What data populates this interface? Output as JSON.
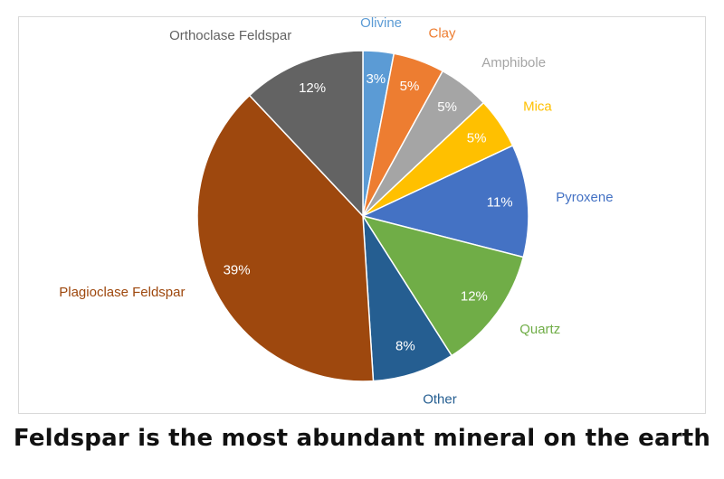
{
  "caption": "Feldspar is the most abundant mineral on the earth",
  "chart_data": {
    "type": "pie",
    "title": "",
    "start_angle_deg": 0,
    "direction": "clockwise",
    "legend": "none",
    "data_labels": "percent-inside, category-outside",
    "slices": [
      {
        "label": "Olivine",
        "value": 3,
        "value_label": "3%",
        "color": "#5b9bd5"
      },
      {
        "label": "Clay",
        "value": 5,
        "value_label": "5%",
        "color": "#ed7d31"
      },
      {
        "label": "Amphibole",
        "value": 5,
        "value_label": "5%",
        "color": "#a5a5a5"
      },
      {
        "label": "Mica",
        "value": 5,
        "value_label": "5%",
        "color": "#ffc000"
      },
      {
        "label": "Pyroxene",
        "value": 11,
        "value_label": "11%",
        "color": "#4472c4"
      },
      {
        "label": "Quartz",
        "value": 12,
        "value_label": "12%",
        "color": "#70ad47"
      },
      {
        "label": "Other",
        "value": 8,
        "value_label": "8%",
        "color": "#255e91"
      },
      {
        "label": "Plagioclase Feldspar",
        "value": 39,
        "value_label": "39%",
        "color": "#9e480e"
      },
      {
        "label": "Orthoclase Feldspar",
        "value": 12,
        "value_label": "12%",
        "color": "#636363"
      }
    ]
  }
}
